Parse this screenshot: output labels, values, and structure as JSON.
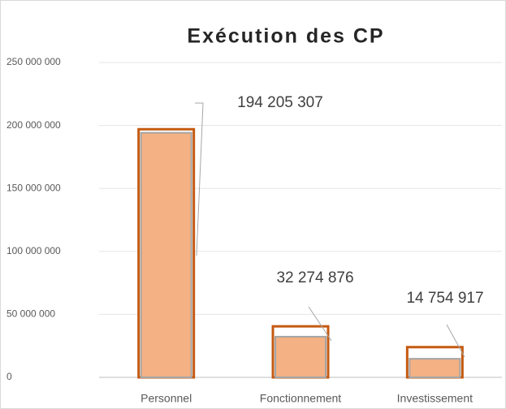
{
  "chart_data": {
    "type": "bar",
    "title": "Exécution des CP",
    "categories": [
      "Personnel",
      "Fonctionnement",
      "Investissement"
    ],
    "series": [
      {
        "color": "#c55a11",
        "values": [
          197000000,
          40500000,
          24000000
        ]
      },
      {
        "color": "#f4b183",
        "values": [
          194205307,
          32274876,
          14754917
        ],
        "value_labels": [
          "194 205 307",
          "32 274 876",
          "14 754 917"
        ]
      }
    ],
    "ylim": [
      0,
      250000000
    ],
    "yticks": [
      {
        "value": 0,
        "label": "0"
      },
      {
        "value": 50000000,
        "label": "50 000 000"
      },
      {
        "value": 100000000,
        "label": "100 000 000"
      },
      {
        "value": 150000000,
        "label": "150 000 000"
      },
      {
        "value": 200000000,
        "label": "200 000 000"
      },
      {
        "value": 250000000,
        "label": "250 000 000"
      }
    ],
    "grid": true
  }
}
